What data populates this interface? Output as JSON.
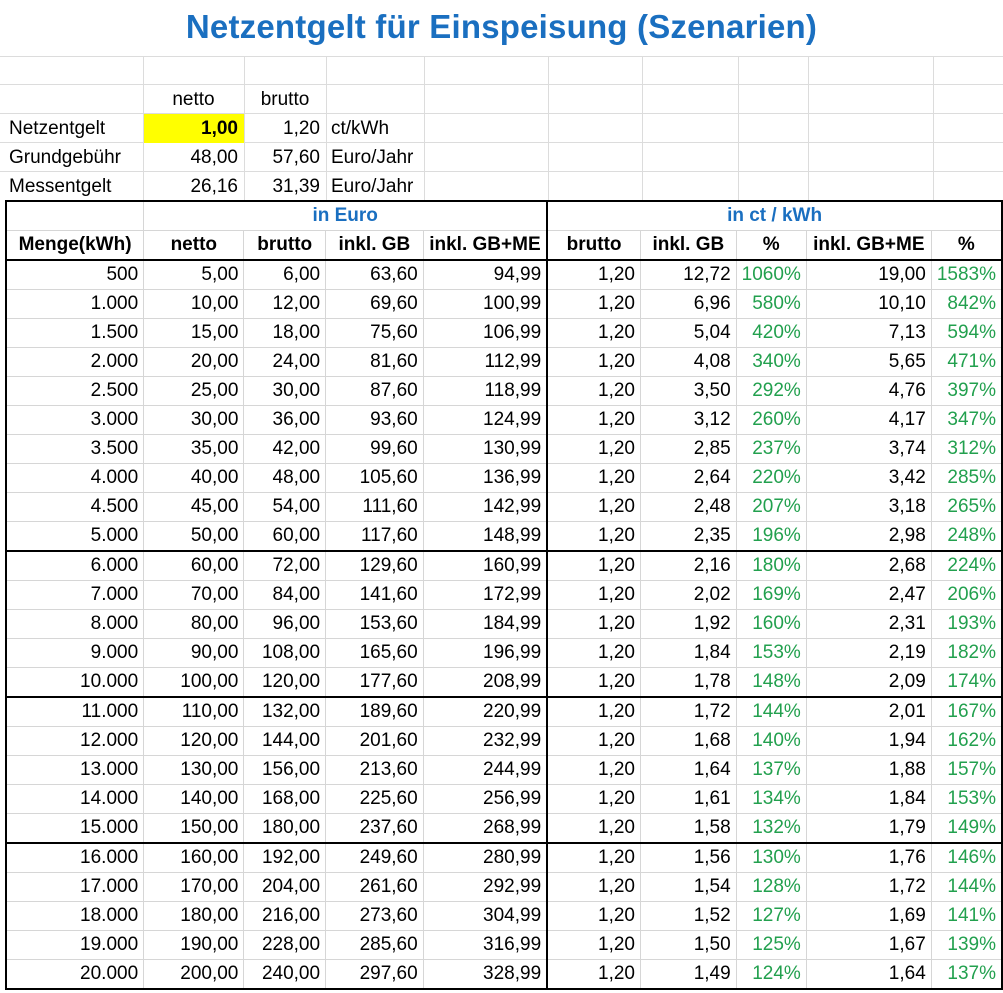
{
  "title": "Netzentgelt für Einspeisung (Szenarien)",
  "params": {
    "col_netto": "netto",
    "col_brutto": "brutto",
    "rows": [
      {
        "label": "Netzentgelt",
        "netto": "1,00",
        "brutto": "1,20",
        "unit": "ct/kWh"
      },
      {
        "label": "Grundgebühr",
        "netto": "48,00",
        "brutto": "57,60",
        "unit": "Euro/Jahr"
      },
      {
        "label": "Messentgelt",
        "netto": "26,16",
        "brutto": "31,39",
        "unit": "Euro/Jahr"
      }
    ]
  },
  "table": {
    "group_euro": "in Euro",
    "group_ct": "in ct / kWh",
    "headers": [
      "Menge(kWh)",
      "netto",
      "brutto",
      "inkl. GB",
      "inkl. GB+ME",
      "brutto",
      "inkl. GB",
      "%",
      "inkl. GB+ME",
      "%"
    ],
    "rows": [
      [
        "500",
        "5,00",
        "6,00",
        "63,60",
        "94,99",
        "1,20",
        "12,72",
        "1060%",
        "19,00",
        "1583%"
      ],
      [
        "1.000",
        "10,00",
        "12,00",
        "69,60",
        "100,99",
        "1,20",
        "6,96",
        "580%",
        "10,10",
        "842%"
      ],
      [
        "1.500",
        "15,00",
        "18,00",
        "75,60",
        "106,99",
        "1,20",
        "5,04",
        "420%",
        "7,13",
        "594%"
      ],
      [
        "2.000",
        "20,00",
        "24,00",
        "81,60",
        "112,99",
        "1,20",
        "4,08",
        "340%",
        "5,65",
        "471%"
      ],
      [
        "2.500",
        "25,00",
        "30,00",
        "87,60",
        "118,99",
        "1,20",
        "3,50",
        "292%",
        "4,76",
        "397%"
      ],
      [
        "3.000",
        "30,00",
        "36,00",
        "93,60",
        "124,99",
        "1,20",
        "3,12",
        "260%",
        "4,17",
        "347%"
      ],
      [
        "3.500",
        "35,00",
        "42,00",
        "99,60",
        "130,99",
        "1,20",
        "2,85",
        "237%",
        "3,74",
        "312%"
      ],
      [
        "4.000",
        "40,00",
        "48,00",
        "105,60",
        "136,99",
        "1,20",
        "2,64",
        "220%",
        "3,42",
        "285%"
      ],
      [
        "4.500",
        "45,00",
        "54,00",
        "111,60",
        "142,99",
        "1,20",
        "2,48",
        "207%",
        "3,18",
        "265%"
      ],
      [
        "5.000",
        "50,00",
        "60,00",
        "117,60",
        "148,99",
        "1,20",
        "2,35",
        "196%",
        "2,98",
        "248%"
      ],
      [
        "6.000",
        "60,00",
        "72,00",
        "129,60",
        "160,99",
        "1,20",
        "2,16",
        "180%",
        "2,68",
        "224%"
      ],
      [
        "7.000",
        "70,00",
        "84,00",
        "141,60",
        "172,99",
        "1,20",
        "2,02",
        "169%",
        "2,47",
        "206%"
      ],
      [
        "8.000",
        "80,00",
        "96,00",
        "153,60",
        "184,99",
        "1,20",
        "1,92",
        "160%",
        "2,31",
        "193%"
      ],
      [
        "9.000",
        "90,00",
        "108,00",
        "165,60",
        "196,99",
        "1,20",
        "1,84",
        "153%",
        "2,19",
        "182%"
      ],
      [
        "10.000",
        "100,00",
        "120,00",
        "177,60",
        "208,99",
        "1,20",
        "1,78",
        "148%",
        "2,09",
        "174%"
      ],
      [
        "11.000",
        "110,00",
        "132,00",
        "189,60",
        "220,99",
        "1,20",
        "1,72",
        "144%",
        "2,01",
        "167%"
      ],
      [
        "12.000",
        "120,00",
        "144,00",
        "201,60",
        "232,99",
        "1,20",
        "1,68",
        "140%",
        "1,94",
        "162%"
      ],
      [
        "13.000",
        "130,00",
        "156,00",
        "213,60",
        "244,99",
        "1,20",
        "1,64",
        "137%",
        "1,88",
        "157%"
      ],
      [
        "14.000",
        "140,00",
        "168,00",
        "225,60",
        "256,99",
        "1,20",
        "1,61",
        "134%",
        "1,84",
        "153%"
      ],
      [
        "15.000",
        "150,00",
        "180,00",
        "237,60",
        "268,99",
        "1,20",
        "1,58",
        "132%",
        "1,79",
        "149%"
      ],
      [
        "16.000",
        "160,00",
        "192,00",
        "249,60",
        "280,99",
        "1,20",
        "1,56",
        "130%",
        "1,76",
        "146%"
      ],
      [
        "17.000",
        "170,00",
        "204,00",
        "261,60",
        "292,99",
        "1,20",
        "1,54",
        "128%",
        "1,72",
        "144%"
      ],
      [
        "18.000",
        "180,00",
        "216,00",
        "273,60",
        "304,99",
        "1,20",
        "1,52",
        "127%",
        "1,69",
        "141%"
      ],
      [
        "19.000",
        "190,00",
        "228,00",
        "285,60",
        "316,99",
        "1,20",
        "1,50",
        "125%",
        "1,67",
        "139%"
      ],
      [
        "20.000",
        "200,00",
        "240,00",
        "297,60",
        "328,99",
        "1,20",
        "1,49",
        "124%",
        "1,64",
        "137%"
      ]
    ]
  },
  "colors": {
    "title": "#1a6fc0",
    "group_header": "#1a6fc0",
    "percent": "#22a04e",
    "highlight": "#ffff00"
  }
}
